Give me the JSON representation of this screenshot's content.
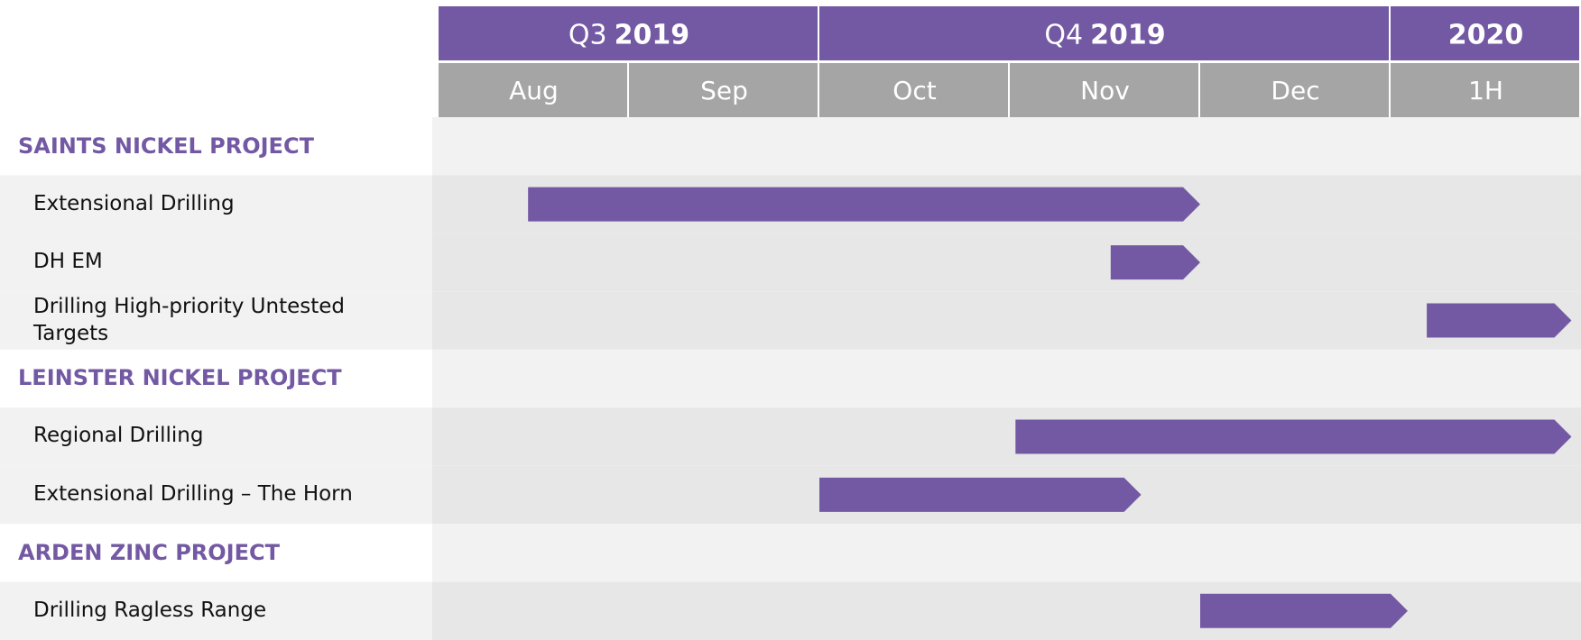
{
  "chart_data": {
    "type": "gantt",
    "color": "#7359a3",
    "header_color": "#7359a3",
    "month_color": "#a5a5a5",
    "periods": [
      {
        "prefix": "Q3",
        "year": "2019",
        "span": 2
      },
      {
        "prefix": "Q4",
        "year": "2019",
        "span": 3
      },
      {
        "year": "2020",
        "span": 1
      }
    ],
    "categories": [
      "Aug",
      "Sep",
      "Oct",
      "Nov",
      "Dec",
      "1H"
    ],
    "sections": [
      {
        "name": "SAINTS NICKEL PROJECT",
        "tasks": [
          {
            "name": "Extensional Drilling",
            "start": 0.47,
            "end": 4.0
          },
          {
            "name": "DH EM",
            "start": 3.53,
            "end": 4.0
          },
          {
            "name": "Drilling High-priority Untested Targets",
            "start": 5.19,
            "end": 5.95
          }
        ]
      },
      {
        "name": "LEINSTER NICKEL PROJECT",
        "tasks": [
          {
            "name": "Regional Drilling",
            "start": 3.03,
            "end": 5.95
          },
          {
            "name": "Extensional Drilling – The Horn",
            "start": 2.0,
            "end": 3.69
          }
        ]
      },
      {
        "name": "ARDEN ZINC PROJECT",
        "tasks": [
          {
            "name": "Drilling Ragless Range",
            "start": 4.0,
            "end": 5.09
          }
        ]
      }
    ]
  }
}
